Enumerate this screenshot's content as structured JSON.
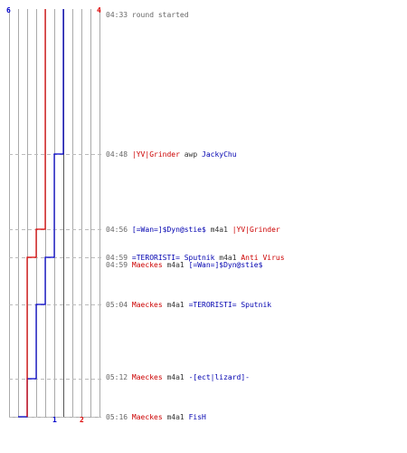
{
  "colors": {
    "team_blue": "#0000cc",
    "team_red": "#dd0000",
    "grid": "#aaaaaa",
    "grid_dark": "#555555",
    "dash": "#bbbbbb",
    "timestamp": "#666666"
  },
  "scores": {
    "blue_start": "6",
    "red_start": "4",
    "blue_end": "1",
    "red_end": "2"
  },
  "events": [
    {
      "time": "04:33",
      "message": "round started",
      "type": "system"
    },
    {
      "time": "04:48",
      "killer": "|YV|Grinder",
      "killer_team": "red",
      "weapon": "awp",
      "victim": "JackyChu",
      "victim_team": "blue",
      "type": "kill"
    },
    {
      "time": "04:56",
      "killer": "[=Wan=]$Dyn@stie$",
      "killer_team": "blue",
      "weapon": "m4a1",
      "victim": "|YV|Grinder",
      "victim_team": "red",
      "type": "kill"
    },
    {
      "time": "04:59",
      "killer": "=TERORISTI= Sputnik",
      "killer_team": "blue",
      "weapon": "m4a1",
      "victim": "Anti Virus",
      "victim_team": "red",
      "type": "kill"
    },
    {
      "time": "04:59",
      "killer": "Maeckes",
      "killer_team": "red",
      "weapon": "m4a1",
      "victim": "[=Wan=]$Dyn@stie$",
      "victim_team": "blue",
      "type": "kill"
    },
    {
      "time": "05:04",
      "killer": "Maeckes",
      "killer_team": "red",
      "weapon": "m4a1",
      "victim": "=TERORISTI= Sputnik",
      "victim_team": "blue",
      "type": "kill"
    },
    {
      "time": "05:12",
      "killer": "Maeckes",
      "killer_team": "red",
      "weapon": "m4a1",
      "victim": "-[ect|lizard]-",
      "victim_team": "blue",
      "type": "kill"
    },
    {
      "time": "05:16",
      "killer": "Maeckes",
      "killer_team": "red",
      "weapon": "m4a1",
      "victim": "FisH",
      "victim_team": "blue",
      "type": "kill"
    }
  ],
  "chart_data": {
    "type": "line",
    "x_label": "",
    "y_label": "",
    "x": [
      "04:33",
      "04:48",
      "04:56",
      "04:59",
      "04:59",
      "05:04",
      "05:12",
      "05:16"
    ],
    "series": [
      {
        "values": [
          6,
          5,
          5,
          4,
          4,
          3,
          2,
          1
        ],
        "color": "#0000cc"
      },
      {
        "values": [
          4,
          4,
          3,
          2,
          2,
          2,
          2,
          2
        ],
        "color": "#dd0000"
      }
    ],
    "y_range": [
      0,
      6
    ],
    "grid": true
  }
}
